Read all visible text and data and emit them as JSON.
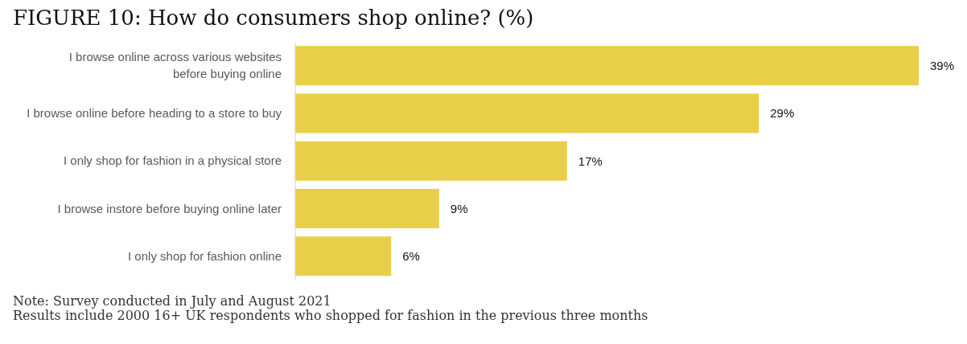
{
  "chart_data": {
    "type": "bar",
    "orientation": "horizontal",
    "title": "FIGURE 10: How do consumers shop online? (%)",
    "categories": [
      "I browse online across various websites before buying online",
      "I browse online before heading to a store to buy",
      "I only shop for fashion in a physical store",
      "I browse instore before buying online later",
      "I only shop for fashion online"
    ],
    "values": [
      39,
      29,
      17,
      9,
      6
    ],
    "value_labels": [
      "39%",
      "29%",
      "17%",
      "9%",
      "6%"
    ],
    "color": "#e8cf47",
    "annotations": [
      "Note: Survey conducted in July and August 2021",
      "Results include 2000 16+ UK respondents who shopped for fashion in the previous three months"
    ]
  }
}
